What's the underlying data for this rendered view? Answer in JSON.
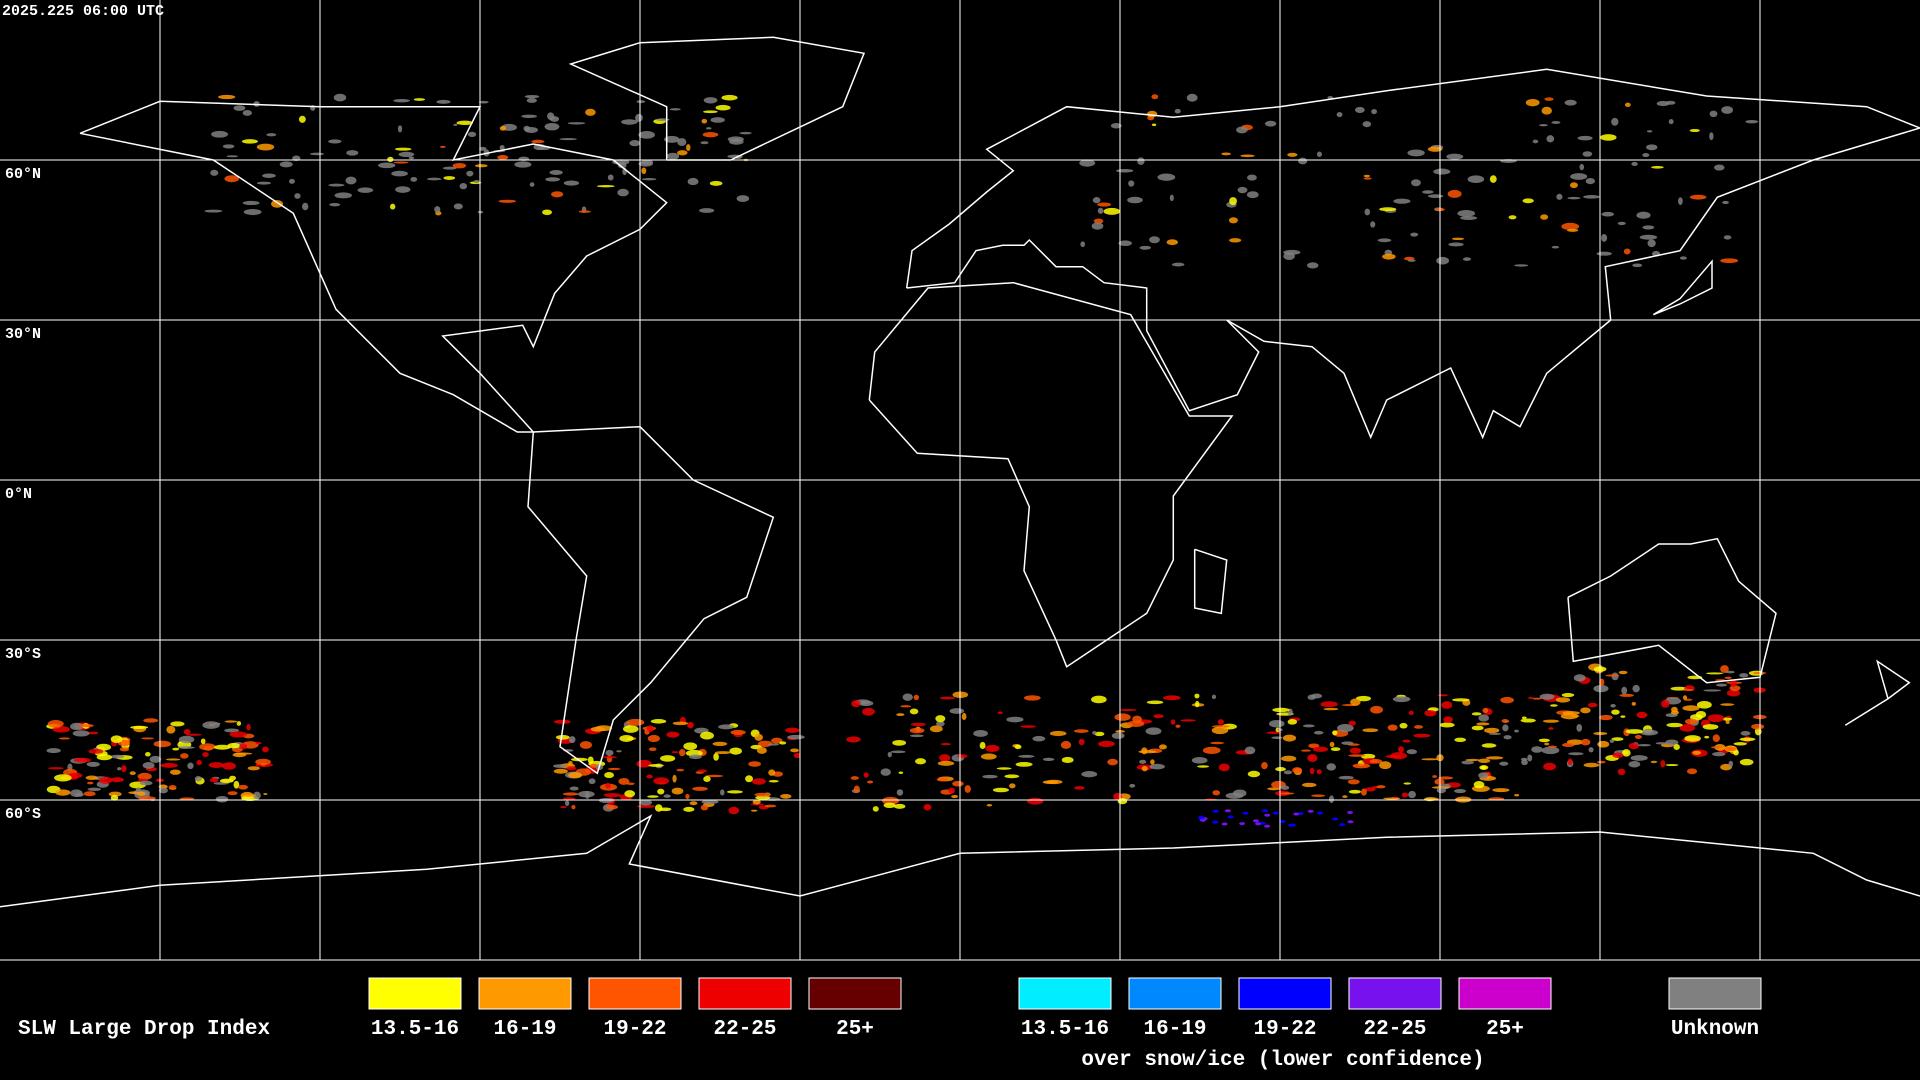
{
  "header": {
    "timestamp": "2025.225 06:00 UTC"
  },
  "map": {
    "lat_labels": [
      "60°N",
      "30°N",
      "0°N",
      "30°S",
      "60°S"
    ]
  },
  "legend": {
    "title": "SLW Large Drop Index",
    "groups": [
      {
        "items": [
          {
            "label": "13.5-16",
            "color": "#ffff00"
          },
          {
            "label": "16-19",
            "color": "#ff9900"
          },
          {
            "label": "19-22",
            "color": "#ff5500"
          },
          {
            "label": "22-25",
            "color": "#ee0000"
          },
          {
            "label": "25+",
            "color": "#660000"
          }
        ]
      },
      {
        "items": [
          {
            "label": "13.5-16",
            "color": "#00eeff"
          },
          {
            "label": "16-19",
            "color": "#0088ff"
          },
          {
            "label": "19-22",
            "color": "#0000ff"
          },
          {
            "label": "22-25",
            "color": "#7711ee"
          },
          {
            "label": "25+",
            "color": "#cc00cc"
          }
        ],
        "caption": "over snow/ice (lower confidence)"
      }
    ],
    "unknown": {
      "label": "Unknown",
      "color": "#808080"
    }
  }
}
